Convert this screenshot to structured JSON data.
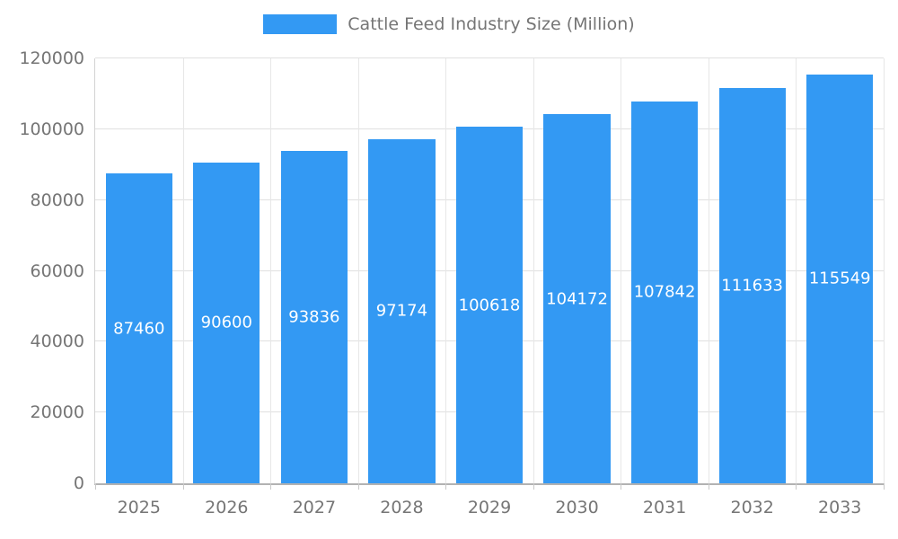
{
  "chart_data": {
    "type": "bar",
    "title": "Cattle Feed Industry Size (Million)",
    "categories": [
      "2025",
      "2026",
      "2027",
      "2028",
      "2029",
      "2030",
      "2031",
      "2032",
      "2033"
    ],
    "values": [
      87460,
      90600,
      93836,
      97174,
      100618,
      104172,
      107842,
      111633,
      115549
    ],
    "ylim": [
      0,
      120000
    ],
    "ytick_step": 20000,
    "ytick_labels": [
      "0",
      "20000",
      "40000",
      "60000",
      "80000",
      "100000",
      "120000"
    ],
    "grid": true,
    "legend_position": "top",
    "bar_color": "#3399f3",
    "bar_label_color": "#ffffff",
    "axis_text_color": "#757575"
  },
  "legend": {
    "label": "Cattle Feed Industry Size (Million)"
  }
}
